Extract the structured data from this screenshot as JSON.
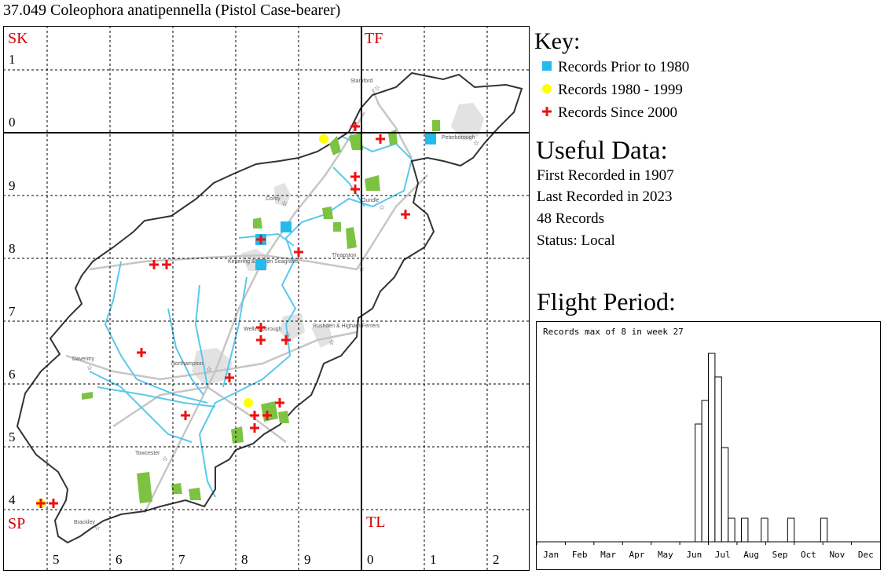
{
  "title": "37.049 Coleophora anatipennella (Pistol Case-bearer)",
  "map": {
    "square_labels": [
      "SK",
      "TF",
      "SP",
      "TL"
    ],
    "easting_labels": [
      "5",
      "6",
      "7",
      "8",
      "9",
      "0",
      "1",
      "2"
    ],
    "northing_labels": [
      "1",
      "0",
      "9",
      "8",
      "7",
      "6",
      "5",
      "4"
    ],
    "place_labels": [
      "Stamford",
      "Peterborough",
      "Corby",
      "Oundle",
      "Kettering & Barton Seagrave",
      "Thrapston",
      "Wellingborough",
      "Rushden & Higham Ferrers",
      "Daventry",
      "Northampton",
      "Towcester",
      "Brackley"
    ],
    "colors": {
      "county_outline": "#333333",
      "river": "#5bc8ec",
      "road": "#c6c6c6",
      "woodland": "#7dc242",
      "urban": "#e2e2e2",
      "grid_label": "#d00000"
    }
  },
  "key": {
    "title": "Key:",
    "items": [
      {
        "label": "Records Prior to 1980",
        "symbol": "square",
        "color": "#22bbee"
      },
      {
        "label": "Records 1980 - 1999",
        "symbol": "circle",
        "color": "#ffff00"
      },
      {
        "label": "Records Since 2000",
        "symbol": "cross",
        "color": "#ee1111"
      }
    ]
  },
  "useful": {
    "title": "Useful Data:",
    "rows": [
      "First Recorded in 1907",
      "Last Recorded in 2023",
      "48 Records",
      "Status: Local"
    ]
  },
  "flight": {
    "title": "Flight Period:",
    "note": "Records max of 8 in week 27"
  },
  "chart_data": [
    {
      "type": "scatter",
      "x_unit": "OS grid easting 10km",
      "y_unit": "OS grid northing 10km",
      "series": [
        {
          "name": "Records Prior to 1980",
          "color": "#22bbee",
          "points": [
            {
              "x": 8.6,
              "y": 8.3
            },
            {
              "x": 9.0,
              "y": 8.5
            },
            {
              "x": 8.6,
              "y": 7.9
            },
            {
              "x": 11.3,
              "y": 9.9
            }
          ]
        },
        {
          "name": "Records 1980 - 1999",
          "color": "#ffff00",
          "points": [
            {
              "x": 9.6,
              "y": 9.9
            },
            {
              "x": 8.4,
              "y": 5.7
            },
            {
              "x": 5.1,
              "y": 4.1
            }
          ]
        },
        {
          "name": "Records Since 2000",
          "color": "#ee1111",
          "points": [
            {
              "x": 10.1,
              "y": 10.1
            },
            {
              "x": 10.5,
              "y": 9.9
            },
            {
              "x": 10.1,
              "y": 9.3
            },
            {
              "x": 10.1,
              "y": 9.1
            },
            {
              "x": 10.9,
              "y": 8.7
            },
            {
              "x": 8.6,
              "y": 8.3
            },
            {
              "x": 9.2,
              "y": 8.1
            },
            {
              "x": 6.9,
              "y": 7.9
            },
            {
              "x": 7.1,
              "y": 7.9
            },
            {
              "x": 8.6,
              "y": 6.9
            },
            {
              "x": 8.6,
              "y": 6.7
            },
            {
              "x": 9.0,
              "y": 6.7
            },
            {
              "x": 6.7,
              "y": 6.5
            },
            {
              "x": 8.1,
              "y": 6.1
            },
            {
              "x": 8.9,
              "y": 5.7
            },
            {
              "x": 8.5,
              "y": 5.5
            },
            {
              "x": 8.7,
              "y": 5.5
            },
            {
              "x": 7.4,
              "y": 5.5
            },
            {
              "x": 8.5,
              "y": 5.3
            },
            {
              "x": 5.1,
              "y": 4.1
            },
            {
              "x": 5.3,
              "y": 4.1
            }
          ]
        }
      ],
      "xlim": [
        4.5,
        12.5
      ],
      "ylim": [
        3.7,
        11.7
      ]
    },
    {
      "type": "bar",
      "title": "Records max of 8 in week 27",
      "x_unit": "week of year",
      "month_labels": [
        "Jan",
        "Feb",
        "Mar",
        "Apr",
        "May",
        "Jun",
        "Jul",
        "Aug",
        "Sep",
        "Oct",
        "Nov",
        "Dec"
      ],
      "weeks": [
        25,
        26,
        27,
        28,
        29,
        30,
        32,
        35,
        39,
        44
      ],
      "values": [
        5,
        6,
        8,
        7,
        4,
        1,
        1,
        1,
        1,
        1
      ],
      "ylim": [
        0,
        8
      ]
    }
  ]
}
